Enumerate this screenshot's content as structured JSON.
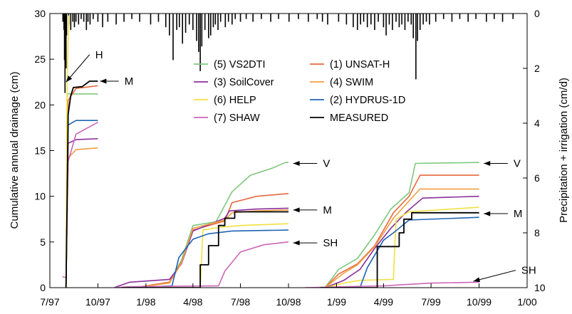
{
  "chart_data": {
    "type": "line",
    "xlabel": "",
    "ylabel": "Cumulative annual drainage (cm)",
    "y2label": "Precipitation + irrigation (cm/d)",
    "x_range": [
      "1997-07-01",
      "2000-01-01"
    ],
    "x_ticks": [
      "7/97",
      "10/97",
      "1/98",
      "4/98",
      "7/98",
      "10/98",
      "1/99",
      "4/99",
      "7/99",
      "10/99",
      "1/00"
    ],
    "ylim": [
      0,
      30
    ],
    "y_ticks": [
      0,
      5,
      10,
      15,
      20,
      25,
      30
    ],
    "y2lim": [
      10,
      0
    ],
    "y2_ticks": [
      0,
      2,
      4,
      6,
      8,
      10
    ],
    "y2_inverted": true,
    "grid": false,
    "legend_position": "top-center, two columns",
    "series": [
      {
        "name": "(5) VS2DTI",
        "color": "#7ec87e",
        "points": [
          [
            "1997-08-01",
            0
          ],
          [
            "1997-08-03",
            21.2
          ],
          [
            "1997-10-01",
            21.2
          ],
          [
            "1997-12-10",
            0
          ],
          [
            "1998-02-15",
            0.6
          ],
          [
            "1998-03-10",
            3
          ],
          [
            "1998-04-01",
            6.8
          ],
          [
            "1998-05-15",
            7.2
          ],
          [
            "1998-06-15",
            10.5
          ],
          [
            "1998-07-20",
            12.3
          ],
          [
            "1998-09-01",
            13.1
          ],
          [
            "1998-09-25",
            13.7
          ],
          [
            "1998-10-01",
            13.7
          ],
          [
            "1998-12-10",
            0
          ],
          [
            "1999-01-05",
            2
          ],
          [
            "1999-02-10",
            3.2
          ],
          [
            "1999-03-15",
            5.8
          ],
          [
            "1999-04-15",
            8.6
          ],
          [
            "1999-05-20",
            10.4
          ],
          [
            "1999-06-01",
            13.6
          ],
          [
            "1999-10-01",
            13.7
          ]
        ]
      },
      {
        "name": "(1) UNSAT-H",
        "color": "#e8693c",
        "points": [
          [
            "1997-08-01",
            0
          ],
          [
            "1997-08-05",
            20.5
          ],
          [
            "1997-08-20",
            21.8
          ],
          [
            "1997-10-01",
            22.1
          ],
          [
            "1997-12-10",
            0
          ],
          [
            "1998-02-15",
            0.6
          ],
          [
            "1998-03-10",
            2.8
          ],
          [
            "1998-04-01",
            6.3
          ],
          [
            "1998-06-01",
            7.3
          ],
          [
            "1998-06-15",
            9.3
          ],
          [
            "1998-08-01",
            10
          ],
          [
            "1998-10-01",
            10.3
          ],
          [
            "1998-12-10",
            0
          ],
          [
            "1999-01-05",
            1.5
          ],
          [
            "1999-02-10",
            2.6
          ],
          [
            "1999-03-15",
            4.6
          ],
          [
            "1999-04-20",
            8.2
          ],
          [
            "1999-05-20",
            10
          ],
          [
            "1999-06-10",
            12.3
          ],
          [
            "1999-10-01",
            12.3
          ]
        ]
      },
      {
        "name": "(3) SoilCover",
        "color": "#8b2f9a",
        "points": [
          [
            "1997-08-01",
            0
          ],
          [
            "1997-08-05",
            15.8
          ],
          [
            "1997-08-20",
            16.2
          ],
          [
            "1997-10-01",
            16.3
          ],
          [
            "1997-11-01",
            0
          ],
          [
            "1997-12-01",
            0.6
          ],
          [
            "1998-02-15",
            0.9
          ],
          [
            "1998-03-10",
            2.6
          ],
          [
            "1998-04-01",
            6.2
          ],
          [
            "1998-06-01",
            7.6
          ],
          [
            "1998-06-10",
            8.4
          ],
          [
            "1998-08-01",
            8.6
          ],
          [
            "1998-10-01",
            8.7
          ],
          [
            "1998-12-10",
            0
          ],
          [
            "1999-01-15",
            0.8
          ],
          [
            "1999-02-15",
            2
          ],
          [
            "1999-03-15",
            4.3
          ],
          [
            "1999-04-15",
            6.5
          ],
          [
            "1999-05-15",
            8.3
          ],
          [
            "1999-06-15",
            9.8
          ],
          [
            "1999-10-01",
            10
          ]
        ]
      },
      {
        "name": "(4) SWIM",
        "color": "#f0a040",
        "points": [
          [
            "1997-08-01",
            0
          ],
          [
            "1997-08-05",
            14.2
          ],
          [
            "1997-08-20",
            15.1
          ],
          [
            "1997-10-01",
            15.3
          ],
          [
            "1997-12-10",
            0
          ],
          [
            "1998-02-15",
            0.5
          ],
          [
            "1998-03-10",
            2.7
          ],
          [
            "1998-04-01",
            6.5
          ],
          [
            "1998-06-01",
            7.4
          ],
          [
            "1998-06-15",
            8.2
          ],
          [
            "1998-08-01",
            8.4
          ],
          [
            "1998-10-01",
            8.5
          ],
          [
            "1998-12-10",
            0
          ],
          [
            "1999-01-15",
            1.6
          ],
          [
            "1999-02-10",
            2.5
          ],
          [
            "1999-03-15",
            4.5
          ],
          [
            "1999-04-20",
            7.6
          ],
          [
            "1999-05-20",
            9.5
          ],
          [
            "1999-06-10",
            10.8
          ],
          [
            "1999-10-01",
            10.8
          ]
        ]
      },
      {
        "name": "(6) HELP",
        "color": "#f2e040",
        "points": [
          [
            "1997-08-01",
            0
          ],
          [
            "1997-08-03",
            22
          ],
          [
            "1997-08-06",
            29.8
          ],
          [
            "1997-12-10",
            0
          ],
          [
            "1998-04-15",
            0
          ],
          [
            "1998-04-20",
            6.3
          ],
          [
            "1998-05-20",
            6.6
          ],
          [
            "1998-07-01",
            6.8
          ],
          [
            "1998-10-01",
            7
          ],
          [
            "1998-12-10",
            0
          ],
          [
            "1999-01-15",
            0.5
          ],
          [
            "1999-02-15",
            0.8
          ],
          [
            "1999-04-20",
            0.9
          ],
          [
            "1999-04-25",
            7.5
          ],
          [
            "1999-05-20",
            8.3
          ],
          [
            "1999-10-01",
            8.8
          ]
        ]
      },
      {
        "name": "(2) HYDRUS-1D",
        "color": "#1f64b4",
        "points": [
          [
            "1997-08-01",
            0
          ],
          [
            "1997-08-05",
            17.8
          ],
          [
            "1997-08-20",
            18.3
          ],
          [
            "1997-10-01",
            18.3
          ],
          [
            "1997-12-10",
            0
          ],
          [
            "1998-02-20",
            0.2
          ],
          [
            "1998-03-05",
            3.3
          ],
          [
            "1998-04-01",
            5.3
          ],
          [
            "1998-05-01",
            5.9
          ],
          [
            "1998-06-15",
            6.2
          ],
          [
            "1998-10-01",
            6.3
          ],
          [
            "1998-12-10",
            0
          ],
          [
            "1999-02-15",
            0
          ],
          [
            "1999-03-01",
            2.2
          ],
          [
            "1999-04-01",
            5.2
          ],
          [
            "1999-04-20",
            6
          ],
          [
            "1999-05-20",
            7.4
          ],
          [
            "1999-10-01",
            7.7
          ]
        ]
      },
      {
        "name": "(7) SHAW",
        "color": "#cc66bb",
        "points": [
          [
            "1997-07-25",
            1.2
          ],
          [
            "1997-08-01",
            1.1
          ],
          [
            "1997-08-05",
            13.8
          ],
          [
            "1997-08-20",
            16.8
          ],
          [
            "1997-10-01",
            18.1
          ],
          [
            "1997-11-01",
            0
          ],
          [
            "1997-12-01",
            0.1
          ],
          [
            "1998-05-20",
            0.2
          ],
          [
            "1998-06-01",
            1.8
          ],
          [
            "1998-07-01",
            3.9
          ],
          [
            "1998-08-15",
            4.7
          ],
          [
            "1998-10-01",
            5
          ],
          [
            "1998-11-01",
            0
          ],
          [
            "1999-04-01",
            0.2
          ],
          [
            "1999-07-01",
            0.5
          ],
          [
            "1999-10-01",
            0.6
          ]
        ]
      },
      {
        "name": "MEASURED",
        "color": "#000000",
        "points": [
          [
            "1997-08-01",
            0
          ],
          [
            "1997-08-05",
            19
          ],
          [
            "1997-08-10",
            21
          ],
          [
            "1997-08-15",
            21.9
          ],
          [
            "1997-09-01",
            22
          ],
          [
            "1997-09-15",
            22.6
          ],
          [
            "1997-10-01",
            22.6
          ],
          [
            "1997-11-15",
            0
          ],
          [
            "1998-04-15",
            0
          ],
          [
            "1998-04-15",
            2.5
          ],
          [
            "1998-05-01",
            2.5
          ],
          [
            "1998-05-01",
            4.6
          ],
          [
            "1998-05-20",
            4.6
          ],
          [
            "1998-05-20",
            6.8
          ],
          [
            "1998-06-01",
            6.8
          ],
          [
            "1998-06-01",
            7.6
          ],
          [
            "1998-06-20",
            7.6
          ],
          [
            "1998-06-20",
            8.3
          ],
          [
            "1998-10-01",
            8.3
          ],
          [
            "1998-12-01",
            0
          ],
          [
            "1999-03-20",
            0
          ],
          [
            "1999-03-20",
            4.5
          ],
          [
            "1999-05-01",
            4.5
          ],
          [
            "1999-05-01",
            6
          ],
          [
            "1999-05-10",
            6
          ],
          [
            "1999-05-10",
            7.5
          ],
          [
            "1999-05-25",
            7.5
          ],
          [
            "1999-05-25",
            8.2
          ],
          [
            "1999-10-01",
            8.2
          ]
        ]
      }
    ],
    "precipitation_cm_per_d": [
      [
        "1997-07-26",
        0.3
      ],
      [
        "1997-07-28",
        0.6
      ],
      [
        "1997-07-29",
        1.7
      ],
      [
        "1997-07-30",
        2.9
      ],
      [
        "1997-08-01",
        2.0
      ],
      [
        "1997-08-02",
        0.8
      ],
      [
        "1997-08-06",
        0.4
      ],
      [
        "1997-08-10",
        0.6
      ],
      [
        "1997-08-14",
        0.3
      ],
      [
        "1997-08-17",
        0.5
      ],
      [
        "1997-08-20",
        0.3
      ],
      [
        "1997-08-25",
        0.4
      ],
      [
        "1997-08-30",
        0.2
      ],
      [
        "1997-09-04",
        0.3
      ],
      [
        "1997-09-09",
        0.6
      ],
      [
        "1997-09-12",
        0.3
      ],
      [
        "1997-09-16",
        0.4
      ],
      [
        "1997-09-22",
        0.2
      ],
      [
        "1997-10-01",
        0.3
      ],
      [
        "1997-10-10",
        0.5
      ],
      [
        "1997-10-20",
        0.3
      ],
      [
        "1997-11-05",
        0.4
      ],
      [
        "1997-11-20",
        0.3
      ],
      [
        "1997-12-05",
        0.2
      ],
      [
        "1997-12-20",
        0.3
      ],
      [
        "1998-01-10",
        0.4
      ],
      [
        "1998-01-25",
        0.3
      ],
      [
        "1998-02-08",
        0.5
      ],
      [
        "1998-02-15",
        0.8
      ],
      [
        "1998-02-22",
        1.7
      ],
      [
        "1998-03-01",
        0.6
      ],
      [
        "1998-03-06",
        0.5
      ],
      [
        "1998-03-12",
        1.1
      ],
      [
        "1998-03-18",
        0.7
      ],
      [
        "1998-03-25",
        0.4
      ],
      [
        "1998-04-01",
        0.6
      ],
      [
        "1998-04-08",
        1.0
      ],
      [
        "1998-04-12",
        1.4
      ],
      [
        "1998-04-15",
        2.1
      ],
      [
        "1998-04-18",
        1.2
      ],
      [
        "1998-04-24",
        0.6
      ],
      [
        "1998-05-01",
        0.9
      ],
      [
        "1998-05-05",
        0.8
      ],
      [
        "1998-05-10",
        0.5
      ],
      [
        "1998-05-14",
        0.4
      ],
      [
        "1998-05-19",
        0.6
      ],
      [
        "1998-05-24",
        0.3
      ],
      [
        "1998-06-02",
        0.5
      ],
      [
        "1998-06-08",
        0.3
      ],
      [
        "1998-06-15",
        0.4
      ],
      [
        "1998-06-21",
        0.2
      ],
      [
        "1998-07-01",
        0.3
      ],
      [
        "1998-07-12",
        0.2
      ],
      [
        "1998-07-25",
        0.3
      ],
      [
        "1998-08-10",
        0.2
      ],
      [
        "1998-08-28",
        0.3
      ],
      [
        "1998-09-12",
        0.2
      ],
      [
        "1998-10-02",
        0.3
      ],
      [
        "1998-10-20",
        0.2
      ],
      [
        "1998-11-08",
        0.3
      ],
      [
        "1998-11-25",
        0.2
      ],
      [
        "1998-12-05",
        0.3
      ],
      [
        "1998-12-15",
        0.4
      ],
      [
        "1999-01-05",
        0.3
      ],
      [
        "1999-01-20",
        0.4
      ],
      [
        "1999-02-02",
        0.5
      ],
      [
        "1999-02-10",
        0.6
      ],
      [
        "1999-02-16",
        0.4
      ],
      [
        "1999-02-22",
        0.3
      ],
      [
        "1999-03-01",
        0.5
      ],
      [
        "1999-03-08",
        0.4
      ],
      [
        "1999-03-15",
        0.6
      ],
      [
        "1999-03-22",
        0.3
      ],
      [
        "1999-04-01",
        0.5
      ],
      [
        "1999-04-06",
        0.8
      ],
      [
        "1999-04-12",
        0.4
      ],
      [
        "1999-04-18",
        0.6
      ],
      [
        "1999-04-25",
        0.3
      ],
      [
        "1999-05-01",
        0.5
      ],
      [
        "1999-05-06",
        0.4
      ],
      [
        "1999-05-12",
        0.6
      ],
      [
        "1999-05-18",
        0.3
      ],
      [
        "1999-05-24",
        0.4
      ],
      [
        "1999-05-28",
        0.9
      ],
      [
        "1999-06-02",
        2.4
      ],
      [
        "1999-06-05",
        1.0
      ],
      [
        "1999-06-10",
        0.6
      ],
      [
        "1999-06-16",
        0.4
      ],
      [
        "1999-06-22",
        0.3
      ],
      [
        "1999-06-28",
        0.4
      ],
      [
        "1999-07-10",
        0.3
      ],
      [
        "1999-07-25",
        0.2
      ],
      [
        "1999-08-10",
        0.3
      ],
      [
        "1999-08-25",
        0.2
      ],
      [
        "1999-09-10",
        0.3
      ],
      [
        "1999-09-25",
        0.2
      ],
      [
        "1999-10-15",
        0.3
      ],
      [
        "1999-10-30",
        0.2
      ],
      [
        "1999-11-15",
        0.3
      ],
      [
        "1999-12-05",
        0.2
      ]
    ],
    "annotations": [
      {
        "text": "H",
        "date": "1997-09-15",
        "value": 25.5,
        "to_date": "1997-08-01",
        "to_value": 22.5
      },
      {
        "text": "M",
        "date": "1997-11-10",
        "value": 22.6,
        "to_date": "1997-10-05",
        "to_value": 22.6
      },
      {
        "text": "V",
        "date": "1998-11-25",
        "value": 13.6,
        "to_date": "1998-10-10",
        "to_value": 13.6
      },
      {
        "text": "M",
        "date": "1998-11-25",
        "value": 8.5,
        "to_date": "1998-10-10",
        "to_value": 8.5
      },
      {
        "text": "SH",
        "date": "1998-11-25",
        "value": 4.9,
        "to_date": "1998-10-10",
        "to_value": 4.9
      },
      {
        "text": "V",
        "date": "1999-11-25",
        "value": 13.6,
        "to_date": "1999-10-10",
        "to_value": 13.6
      },
      {
        "text": "M",
        "date": "1999-11-25",
        "value": 8.1,
        "to_date": "1999-10-10",
        "to_value": 8.1
      },
      {
        "text": "SH",
        "date": "1999-12-10",
        "value": 1.9,
        "to_date": "1999-09-20",
        "to_value": 0.7
      }
    ]
  }
}
